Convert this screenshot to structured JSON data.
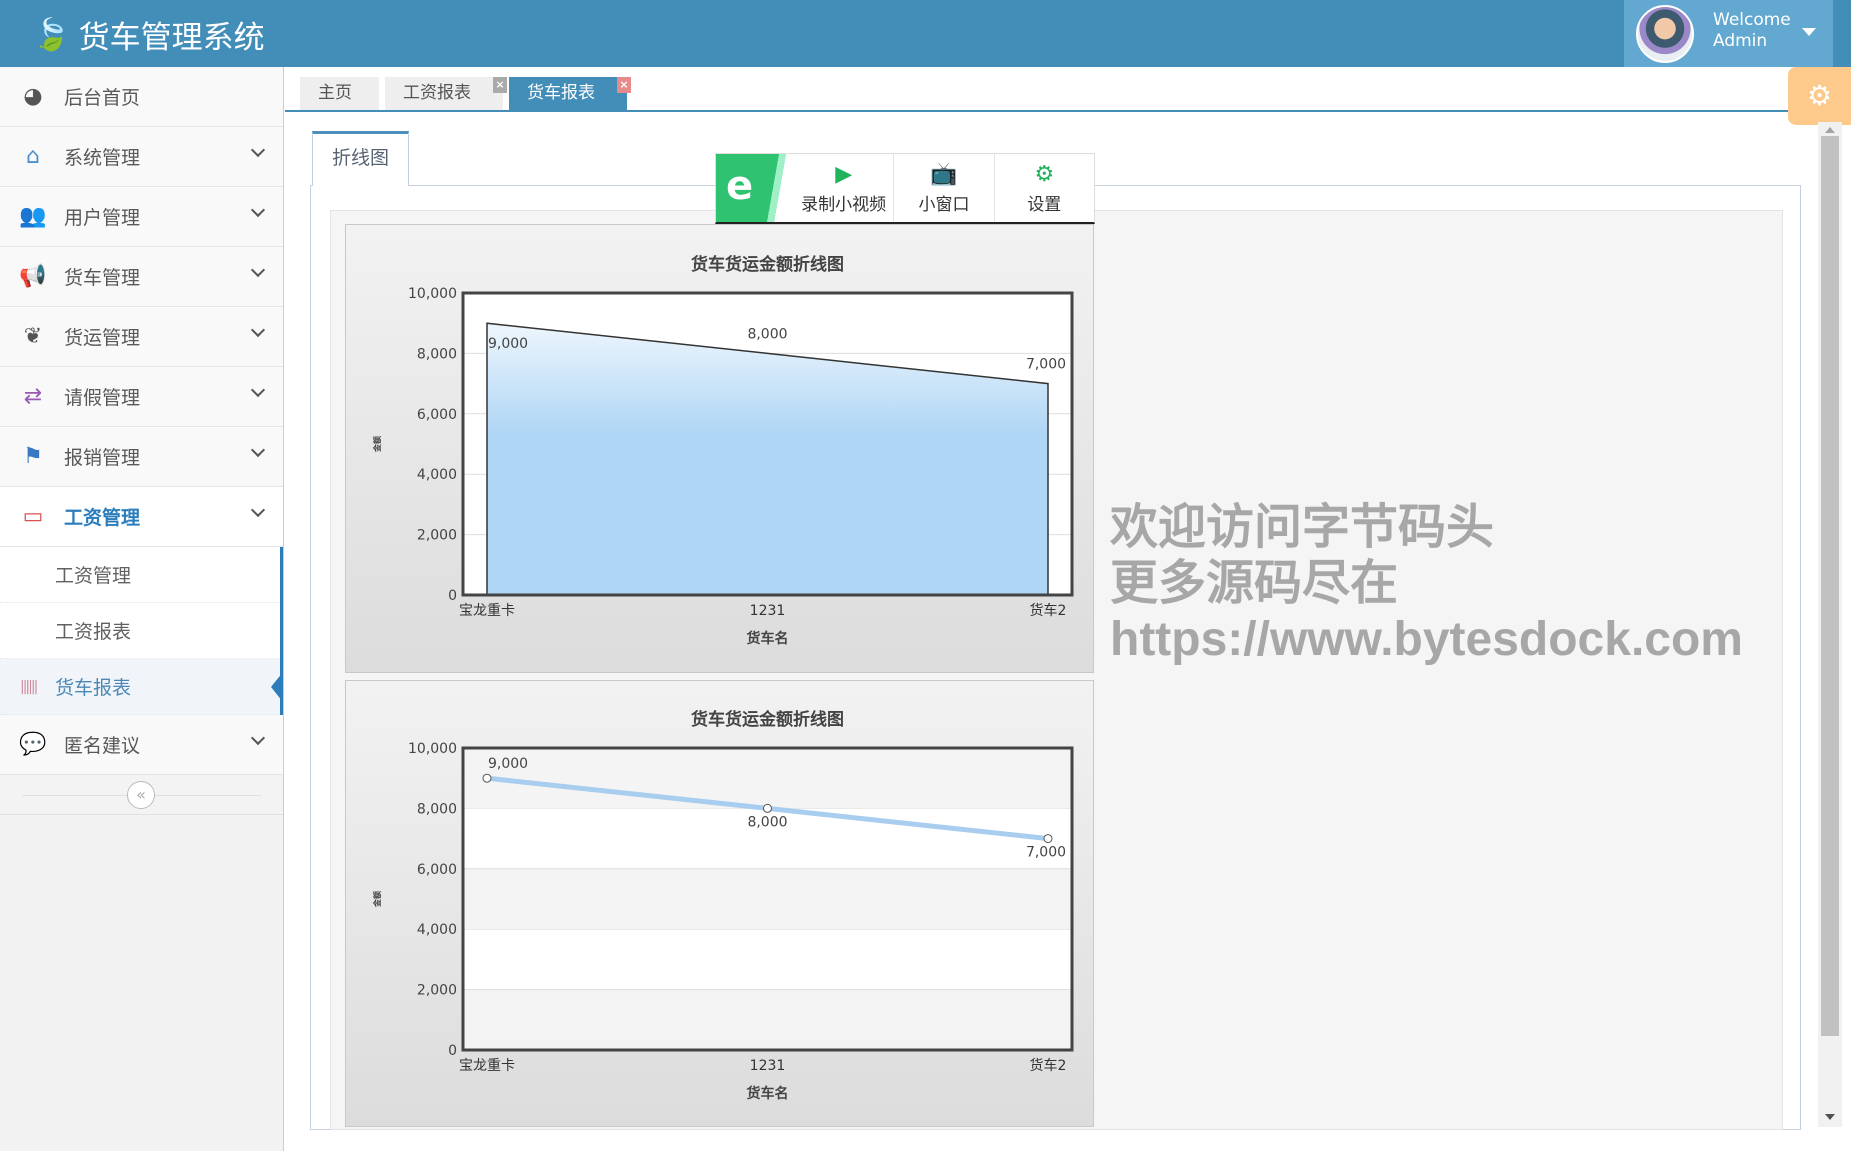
{
  "header": {
    "title": "货车管理系统",
    "welcome": "Welcome",
    "user": "Admin"
  },
  "sidebar": {
    "items": [
      {
        "label": "后台首页",
        "icon": "dashboard-icon",
        "color": "#555555"
      },
      {
        "label": "系统管理",
        "icon": "home-icon",
        "color": "#4a90cc"
      },
      {
        "label": "用户管理",
        "icon": "users-icon",
        "color": "#4a90cc"
      },
      {
        "label": "货车管理",
        "icon": "bullhorn-icon",
        "color": "#c0392b"
      },
      {
        "label": "货运管理",
        "icon": "leaf-icon",
        "color": "#555555"
      },
      {
        "label": "请假管理",
        "icon": "exchange-icon",
        "color": "#9b59b6"
      },
      {
        "label": "报销管理",
        "icon": "flag-icon",
        "color": "#3a78c3"
      },
      {
        "label": "工资管理",
        "icon": "credit-card-icon",
        "color": "#d9534f"
      }
    ],
    "subitems": [
      "工资管理",
      "工资报表",
      "货车报表"
    ],
    "last": {
      "label": "匿名建议",
      "icon": "comment-icon",
      "color": "#f0932b"
    },
    "collapse": "«"
  },
  "tabs": [
    {
      "label": "主页"
    },
    {
      "label": "工资报表"
    },
    {
      "label": "货车报表"
    }
  ],
  "inner_tab": "折线图",
  "toolbar": {
    "logo": "e",
    "record": "录制小视频",
    "mini": "小窗口",
    "settings": "设置"
  },
  "watermark": [
    "欢迎访问字节码头",
    "更多源码尽在  https://www.bytesdock.com"
  ],
  "chart_data": [
    {
      "type": "area",
      "title": "货车货运金额折线图",
      "xlabel": "货车名",
      "ylabel": "金额",
      "categories": [
        "宝龙重卡",
        "1231",
        "货车2"
      ],
      "values": [
        9000,
        8000,
        7000
      ],
      "ylim": [
        0,
        10000
      ],
      "yticks": [
        "0",
        "2,000",
        "4,000",
        "6,000",
        "8,000",
        "10,000"
      ],
      "data_labels": [
        "9,000",
        "8,000",
        "7,000"
      ],
      "color": "#b0d6f5",
      "grid": true
    },
    {
      "type": "line",
      "title": "货车货运金额折线图",
      "xlabel": "货车名",
      "ylabel": "金额",
      "categories": [
        "宝龙重卡",
        "1231",
        "货车2"
      ],
      "values": [
        9000,
        8000,
        7000
      ],
      "ylim": [
        0,
        10000
      ],
      "yticks": [
        "0",
        "2,000",
        "4,000",
        "6,000",
        "8,000",
        "10,000"
      ],
      "data_labels": [
        "9,000",
        "8,000",
        "7,000"
      ],
      "color": "#a8cdee",
      "grid": true
    }
  ]
}
